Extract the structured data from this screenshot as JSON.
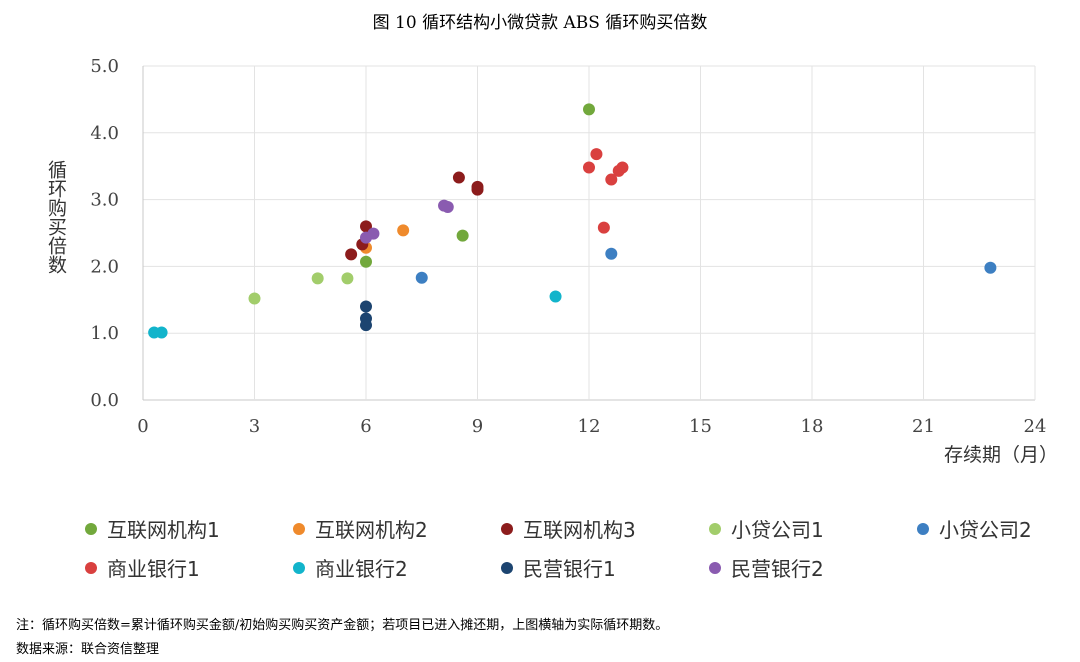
{
  "figure": {
    "title": "图 10    循环结构小微贷款 ABS 循环购买倍数",
    "note": "注：循环购买倍数=累计循环购买金额/初始购买购买资产金额；若项目已进入摊还期，上图横轴为实际循环期数。",
    "source": "数据来源：联合资信整理"
  },
  "chart_data": {
    "type": "scatter",
    "xlabel": "存续期（月）",
    "ylabel": "循环购买倍数",
    "xlim": [
      0,
      24
    ],
    "ylim": [
      0,
      5
    ],
    "xticks": [
      "0",
      "3",
      "6",
      "9",
      "12",
      "15",
      "18",
      "21",
      "24"
    ],
    "yticks": [
      "0.0",
      "1.0",
      "2.0",
      "3.0",
      "4.0",
      "5.0"
    ],
    "grid": true,
    "legend_position": "bottom",
    "series": [
      {
        "name": "互联网机构1",
        "color": "#72a83c",
        "points": [
          [
            12.0,
            4.35
          ],
          [
            8.6,
            2.46
          ],
          [
            6.0,
            2.07
          ]
        ]
      },
      {
        "name": "互联网机构2",
        "color": "#ef8a2c",
        "points": [
          [
            7.0,
            2.54
          ],
          [
            6.0,
            2.28
          ]
        ]
      },
      {
        "name": "互联网机构3",
        "color": "#8c1c1c",
        "points": [
          [
            8.5,
            3.33
          ],
          [
            9.0,
            3.19
          ],
          [
            9.0,
            3.15
          ],
          [
            6.0,
            2.6
          ],
          [
            5.9,
            2.33
          ],
          [
            5.6,
            2.18
          ]
        ]
      },
      {
        "name": "小贷公司1",
        "color": "#a2cd6b",
        "points": [
          [
            3.0,
            1.52
          ],
          [
            4.7,
            1.82
          ],
          [
            5.5,
            1.82
          ]
        ]
      },
      {
        "name": "小贷公司2",
        "color": "#3d7fc2",
        "points": [
          [
            22.8,
            1.98
          ],
          [
            12.6,
            2.19
          ],
          [
            7.5,
            1.83
          ]
        ]
      },
      {
        "name": "商业银行1",
        "color": "#d9403f",
        "points": [
          [
            12.2,
            3.68
          ],
          [
            12.0,
            3.48
          ],
          [
            12.9,
            3.48
          ],
          [
            12.8,
            3.43
          ],
          [
            12.6,
            3.3
          ],
          [
            12.4,
            2.58
          ]
        ]
      },
      {
        "name": "商业银行2",
        "color": "#12b4cb",
        "points": [
          [
            11.1,
            1.55
          ],
          [
            0.3,
            1.01
          ],
          [
            0.5,
            1.01
          ]
        ]
      },
      {
        "name": "民营银行1",
        "color": "#1c4470",
        "points": [
          [
            6.0,
            1.4
          ],
          [
            6.0,
            1.22
          ],
          [
            6.0,
            1.12
          ]
        ]
      },
      {
        "name": "民营银行2",
        "color": "#8a5bb0",
        "points": [
          [
            8.1,
            2.91
          ],
          [
            8.2,
            2.89
          ],
          [
            6.2,
            2.49
          ],
          [
            6.0,
            2.43
          ]
        ]
      }
    ]
  }
}
